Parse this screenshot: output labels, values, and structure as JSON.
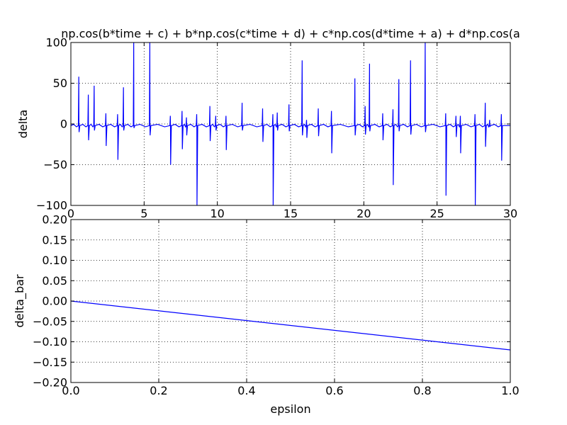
{
  "colors": {
    "line": "#0000ff",
    "grid": "#000000",
    "axes": "#000000",
    "background": "#ffffff"
  },
  "chart_data": [
    {
      "type": "line",
      "title": "np.cos(b*time + c) + b*np.cos(c*time + d) + c*np.cos(d*time + a) + d*np.cos(a",
      "xlabel": "",
      "ylabel": "delta",
      "xlim": [
        0,
        30
      ],
      "ylim": [
        -100,
        100
      ],
      "xticks": [
        0,
        5,
        10,
        15,
        20,
        25,
        30
      ],
      "yticks": [
        -100,
        -50,
        0,
        50,
        100
      ],
      "xtick_labels": [
        "0",
        "5",
        "10",
        "15",
        "20",
        "25",
        "30"
      ],
      "ytick_labels": [
        "−100",
        "−50",
        "0",
        "50",
        "100"
      ],
      "grid": true,
      "baseline": -2,
      "spikes": [
        {
          "x": 0.55,
          "up": 58,
          "down": -10
        },
        {
          "x": 1.2,
          "up": 36,
          "down": -20
        },
        {
          "x": 1.6,
          "up": 47,
          "down": -8
        },
        {
          "x": 2.4,
          "up": 13,
          "down": -27
        },
        {
          "x": 3.2,
          "up": 12,
          "down": -44
        },
        {
          "x": 3.6,
          "up": 45,
          "down": -8
        },
        {
          "x": 4.3,
          "up": 100,
          "down": -5
        },
        {
          "x": 5.4,
          "up": 100,
          "down": -14
        },
        {
          "x": 6.8,
          "up": 10,
          "down": -50
        },
        {
          "x": 7.6,
          "up": 16,
          "down": -31
        },
        {
          "x": 7.9,
          "up": 8,
          "down": -14
        },
        {
          "x": 8.6,
          "up": 12,
          "down": -100
        },
        {
          "x": 9.5,
          "up": 22,
          "down": -21
        },
        {
          "x": 9.9,
          "up": 10,
          "down": -8
        },
        {
          "x": 10.6,
          "up": 10,
          "down": -32
        },
        {
          "x": 11.7,
          "up": 26,
          "down": -8
        },
        {
          "x": 13.1,
          "up": 19,
          "down": -22
        },
        {
          "x": 13.8,
          "up": 12,
          "down": -100
        },
        {
          "x": 14.1,
          "up": 14,
          "down": -8
        },
        {
          "x": 14.9,
          "up": 24,
          "down": -9
        },
        {
          "x": 15.8,
          "up": 78,
          "down": -14
        },
        {
          "x": 16.1,
          "up": 5,
          "down": -17
        },
        {
          "x": 16.9,
          "up": 19,
          "down": -15
        },
        {
          "x": 17.8,
          "up": 16,
          "down": -36
        },
        {
          "x": 19.4,
          "up": 56,
          "down": -14
        },
        {
          "x": 20.1,
          "up": 22,
          "down": -13
        },
        {
          "x": 20.4,
          "up": 74,
          "down": -9
        },
        {
          "x": 21.3,
          "up": 13,
          "down": -20
        },
        {
          "x": 22.0,
          "up": 18,
          "down": -75
        },
        {
          "x": 22.4,
          "up": 55,
          "down": -9
        },
        {
          "x": 23.2,
          "up": 78,
          "down": -13
        },
        {
          "x": 24.2,
          "up": 100,
          "down": -10
        },
        {
          "x": 25.6,
          "up": 13,
          "down": -88
        },
        {
          "x": 26.3,
          "up": 10,
          "down": -16
        },
        {
          "x": 26.6,
          "up": 10,
          "down": -36
        },
        {
          "x": 27.6,
          "up": 12,
          "down": -100
        },
        {
          "x": 28.3,
          "up": 26,
          "down": -28
        },
        {
          "x": 28.6,
          "up": 5,
          "down": -3
        },
        {
          "x": 29.4,
          "up": 12,
          "down": -45
        }
      ]
    },
    {
      "type": "line",
      "title": "",
      "xlabel": "epsilon",
      "ylabel": "delta_bar",
      "xlim": [
        0,
        1
      ],
      "ylim": [
        -0.2,
        0.2
      ],
      "xticks": [
        0.0,
        0.2,
        0.4,
        0.6,
        0.8,
        1.0
      ],
      "yticks": [
        -0.2,
        -0.15,
        -0.1,
        -0.05,
        0.0,
        0.05,
        0.1,
        0.15,
        0.2
      ],
      "xtick_labels": [
        "0.0",
        "0.2",
        "0.4",
        "0.6",
        "0.8",
        "1.0"
      ],
      "ytick_labels": [
        "−0.20",
        "−0.15",
        "−0.10",
        "−0.05",
        "0.00",
        "0.05",
        "0.10",
        "0.15",
        "0.20"
      ],
      "grid": true,
      "x": [
        0.0,
        1.0
      ],
      "y": [
        0.0,
        -0.12
      ]
    }
  ]
}
